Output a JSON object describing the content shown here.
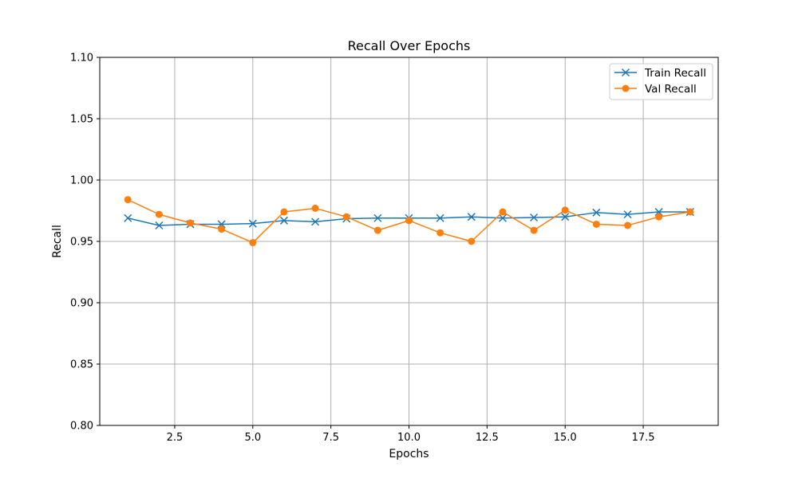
{
  "chart_data": {
    "type": "line",
    "title": "Recall Over Epochs",
    "xlabel": "Epochs",
    "ylabel": "Recall",
    "xlim": [
      0.1,
      19.9
    ],
    "ylim": [
      0.8,
      1.1
    ],
    "xticks": [
      2.5,
      5.0,
      7.5,
      10.0,
      12.5,
      15.0,
      17.5
    ],
    "xtick_labels": [
      "2.5",
      "5.0",
      "7.5",
      "10.0",
      "12.5",
      "15.0",
      "17.5"
    ],
    "yticks": [
      0.8,
      0.85,
      0.9,
      0.95,
      1.0,
      1.05,
      1.1
    ],
    "ytick_labels": [
      "0.80",
      "0.85",
      "0.90",
      "0.95",
      "1.00",
      "1.05",
      "1.10"
    ],
    "grid": true,
    "legend_position": "top-right",
    "x": [
      1,
      2,
      3,
      4,
      5,
      6,
      7,
      8,
      9,
      10,
      11,
      12,
      13,
      14,
      15,
      16,
      17,
      18,
      19
    ],
    "series": [
      {
        "name": "Train Recall",
        "color": "#1f77b4",
        "marker": "x",
        "values": [
          0.969,
          0.963,
          0.964,
          0.964,
          0.9645,
          0.967,
          0.966,
          0.9685,
          0.969,
          0.969,
          0.969,
          0.97,
          0.969,
          0.9695,
          0.97,
          0.9735,
          0.972,
          0.974,
          0.974
        ]
      },
      {
        "name": "Val Recall",
        "color": "#ff7f0e",
        "marker": "o",
        "values": [
          0.984,
          0.972,
          0.965,
          0.96,
          0.949,
          0.974,
          0.977,
          0.97,
          0.959,
          0.967,
          0.957,
          0.95,
          0.974,
          0.959,
          0.9755,
          0.964,
          0.963,
          0.97,
          0.974
        ]
      }
    ]
  }
}
